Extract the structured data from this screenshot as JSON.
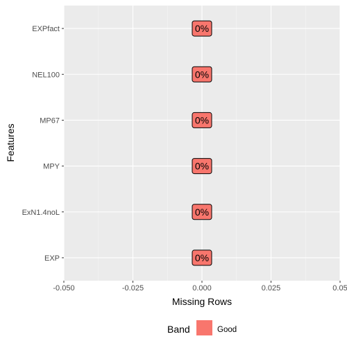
{
  "chart_data": {
    "type": "bar",
    "orientation": "horizontal",
    "categories": [
      "EXPfact",
      "NEL100",
      "MP67",
      "MPY",
      "ExN1.4noL",
      "EXP"
    ],
    "values": [
      0,
      0,
      0,
      0,
      0,
      0
    ],
    "data_labels": [
      "0%",
      "0%",
      "0%",
      "0%",
      "0%",
      "0%"
    ],
    "bands": [
      "Good",
      "Good",
      "Good",
      "Good",
      "Good",
      "Good"
    ],
    "xlabel": "Missing Rows",
    "ylabel": "Features",
    "xlim": [
      -0.05,
      0.05
    ],
    "x_ticks": [
      -0.05,
      -0.025,
      0.0,
      0.025,
      0.05
    ],
    "x_tick_labels": [
      "-0.050",
      "-0.025",
      "0.000",
      "0.025",
      "0.05"
    ],
    "grid": true,
    "legend": {
      "position": "bottom",
      "title": "Band",
      "entries": [
        {
          "label": "Good",
          "color": "#F8766D"
        }
      ]
    },
    "colors": {
      "panel_background": "#EBEBEB",
      "grid": "#FFFFFF",
      "label_fill": "#F8766D",
      "text": "#4D4D4D",
      "title_text": "#000000"
    }
  }
}
